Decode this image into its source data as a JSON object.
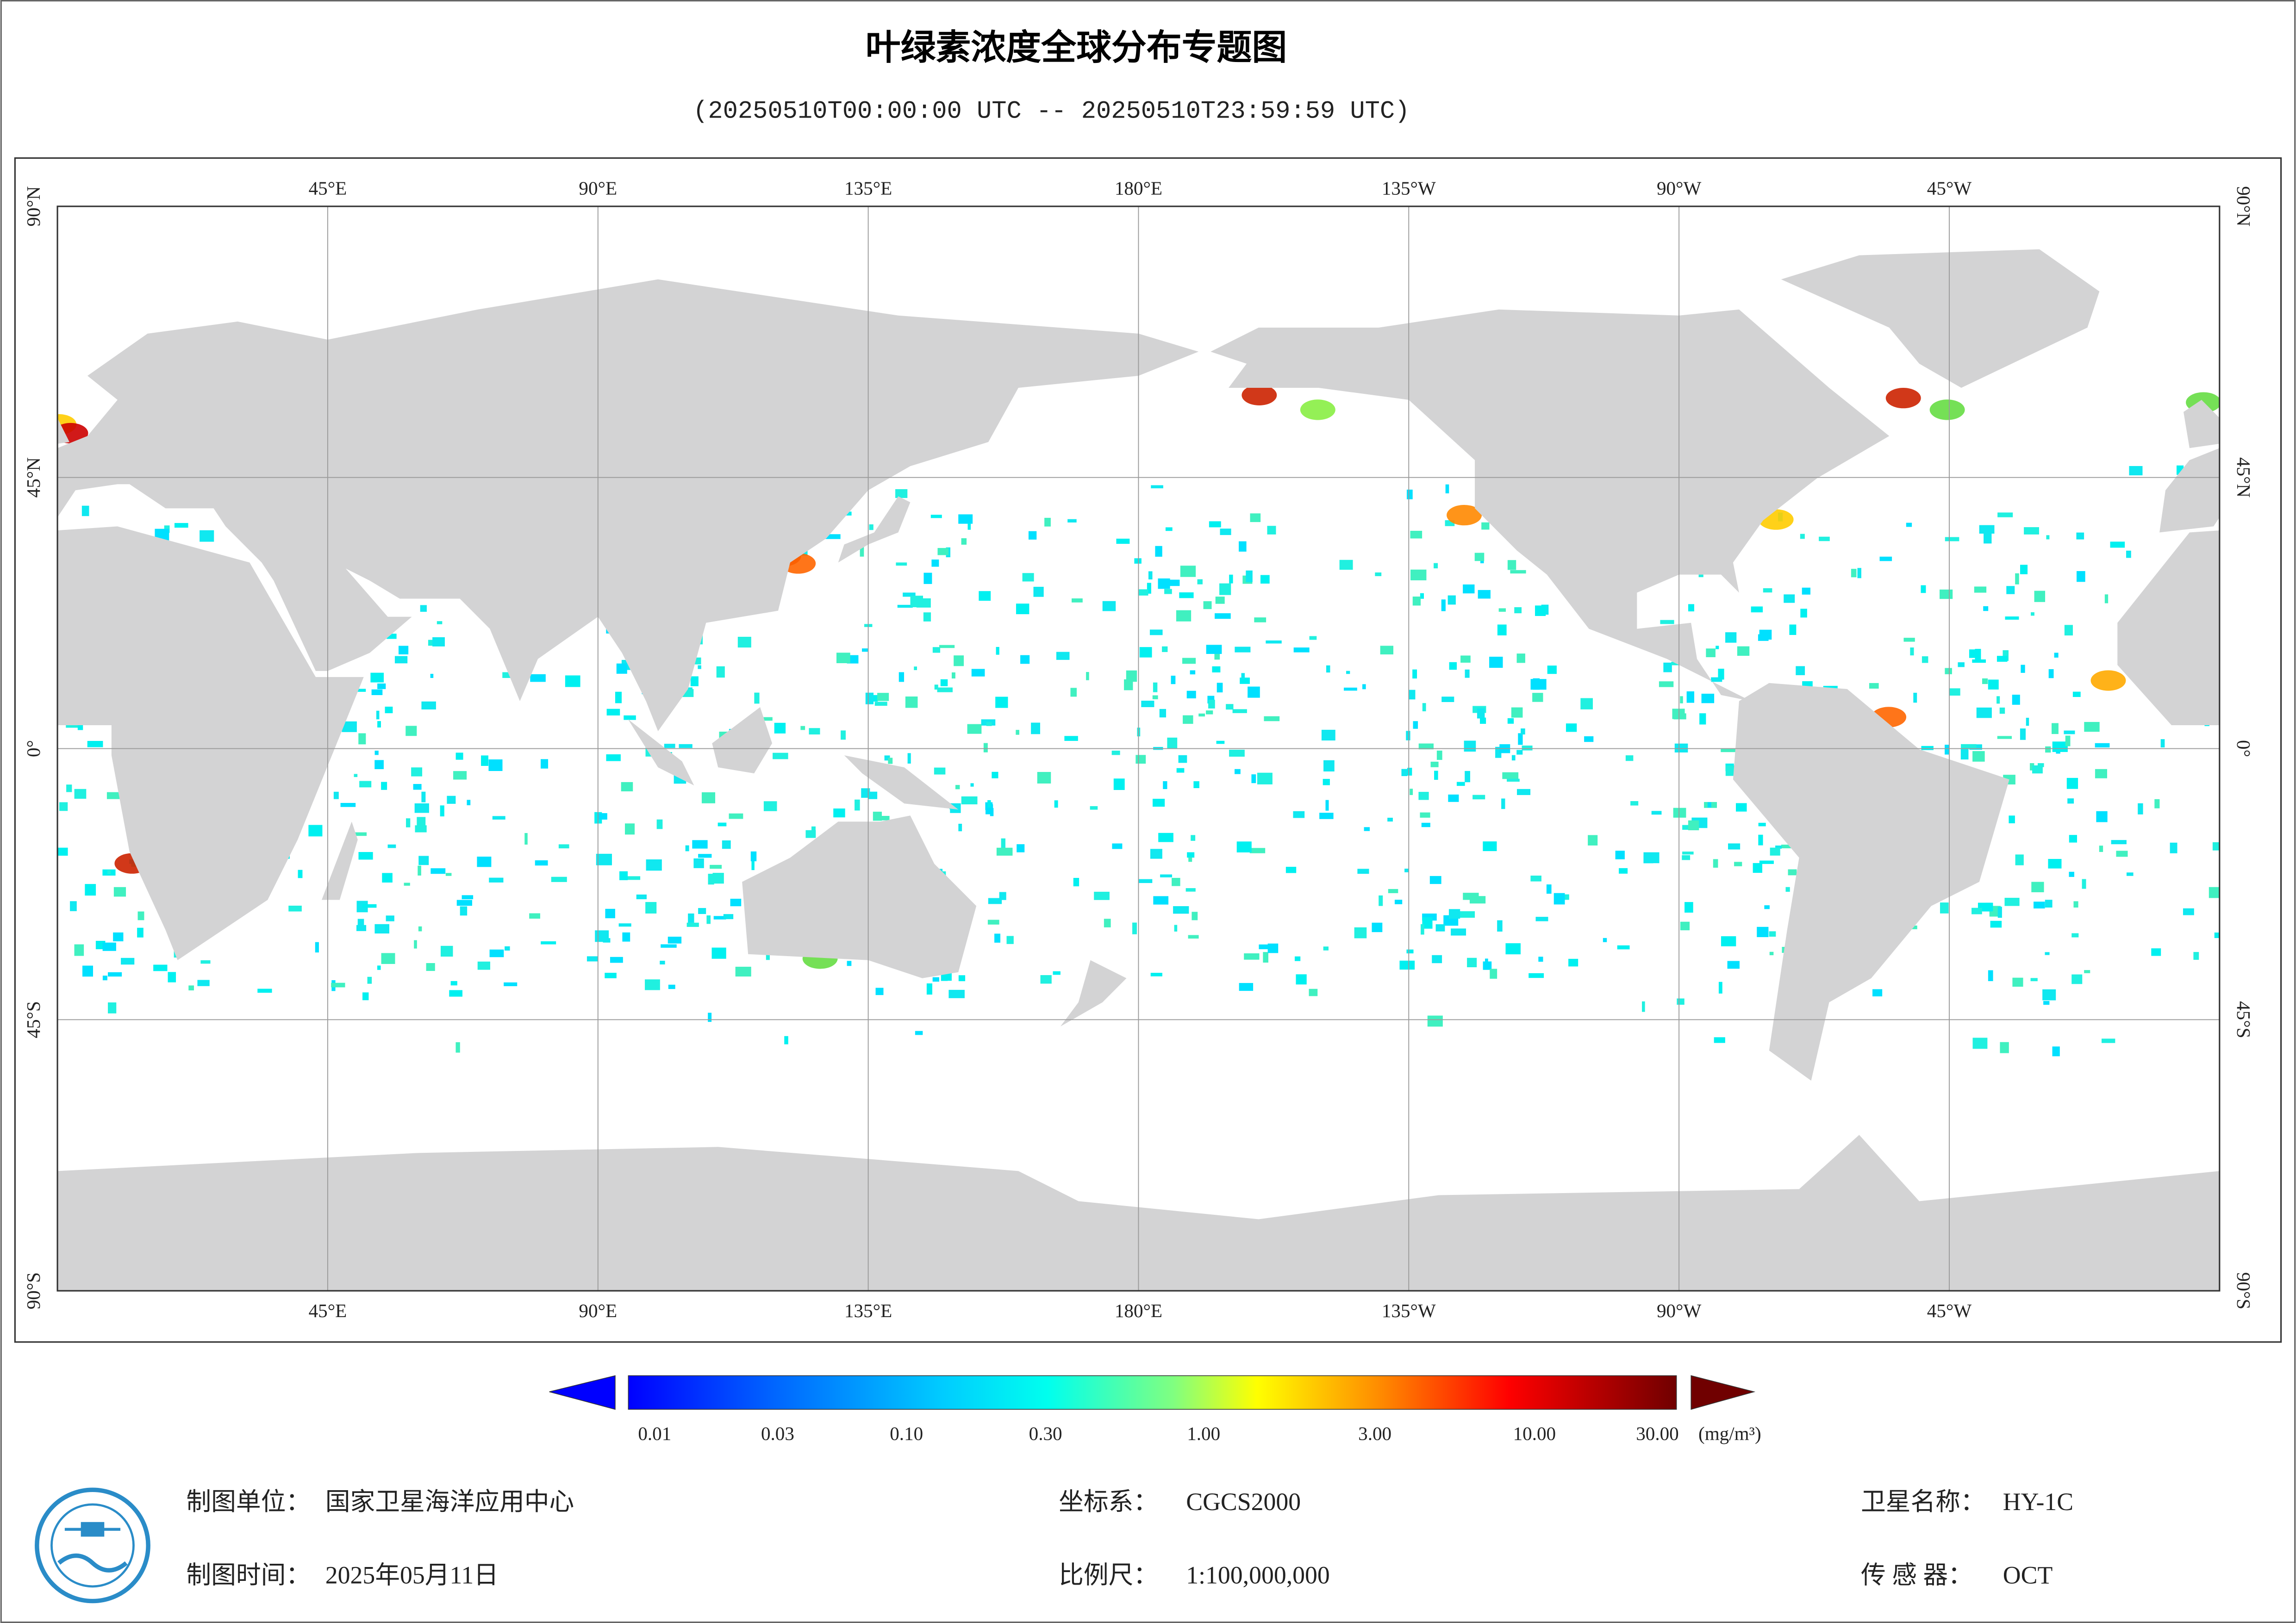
{
  "header": {
    "title": "叶绿素浓度全球分布专题图",
    "subtitle": "(20250510T00:00:00 UTC -- 20250510T23:59:59 UTC)"
  },
  "map": {
    "longitude_labels": [
      "45°E",
      "90°E",
      "135°E",
      "180°E",
      "135°W",
      "90°W",
      "45°W"
    ],
    "latitude_labels": [
      "90°N",
      "45°N",
      "0°",
      "45°S",
      "90°S"
    ]
  },
  "colorbar": {
    "labels": [
      "0.01",
      "0.03",
      "0.10",
      "0.30",
      "1.00",
      "3.00",
      "10.00",
      "30.00"
    ],
    "unit": "(mg/m³)"
  },
  "footer": {
    "unit_label": "制图单位：",
    "unit": "国家卫星海洋应用中心",
    "time_label": "制图时间：",
    "time": "2025年05月11日",
    "crs_label": "坐标系：",
    "crs": "CGCS2000",
    "scale_label": "比例尺：",
    "scale": "1:100,000,000",
    "satellite_label": "卫星名称：",
    "satellite": "HY-1C",
    "sensor_label": "传 感 器：",
    "sensor": "OCT"
  }
}
